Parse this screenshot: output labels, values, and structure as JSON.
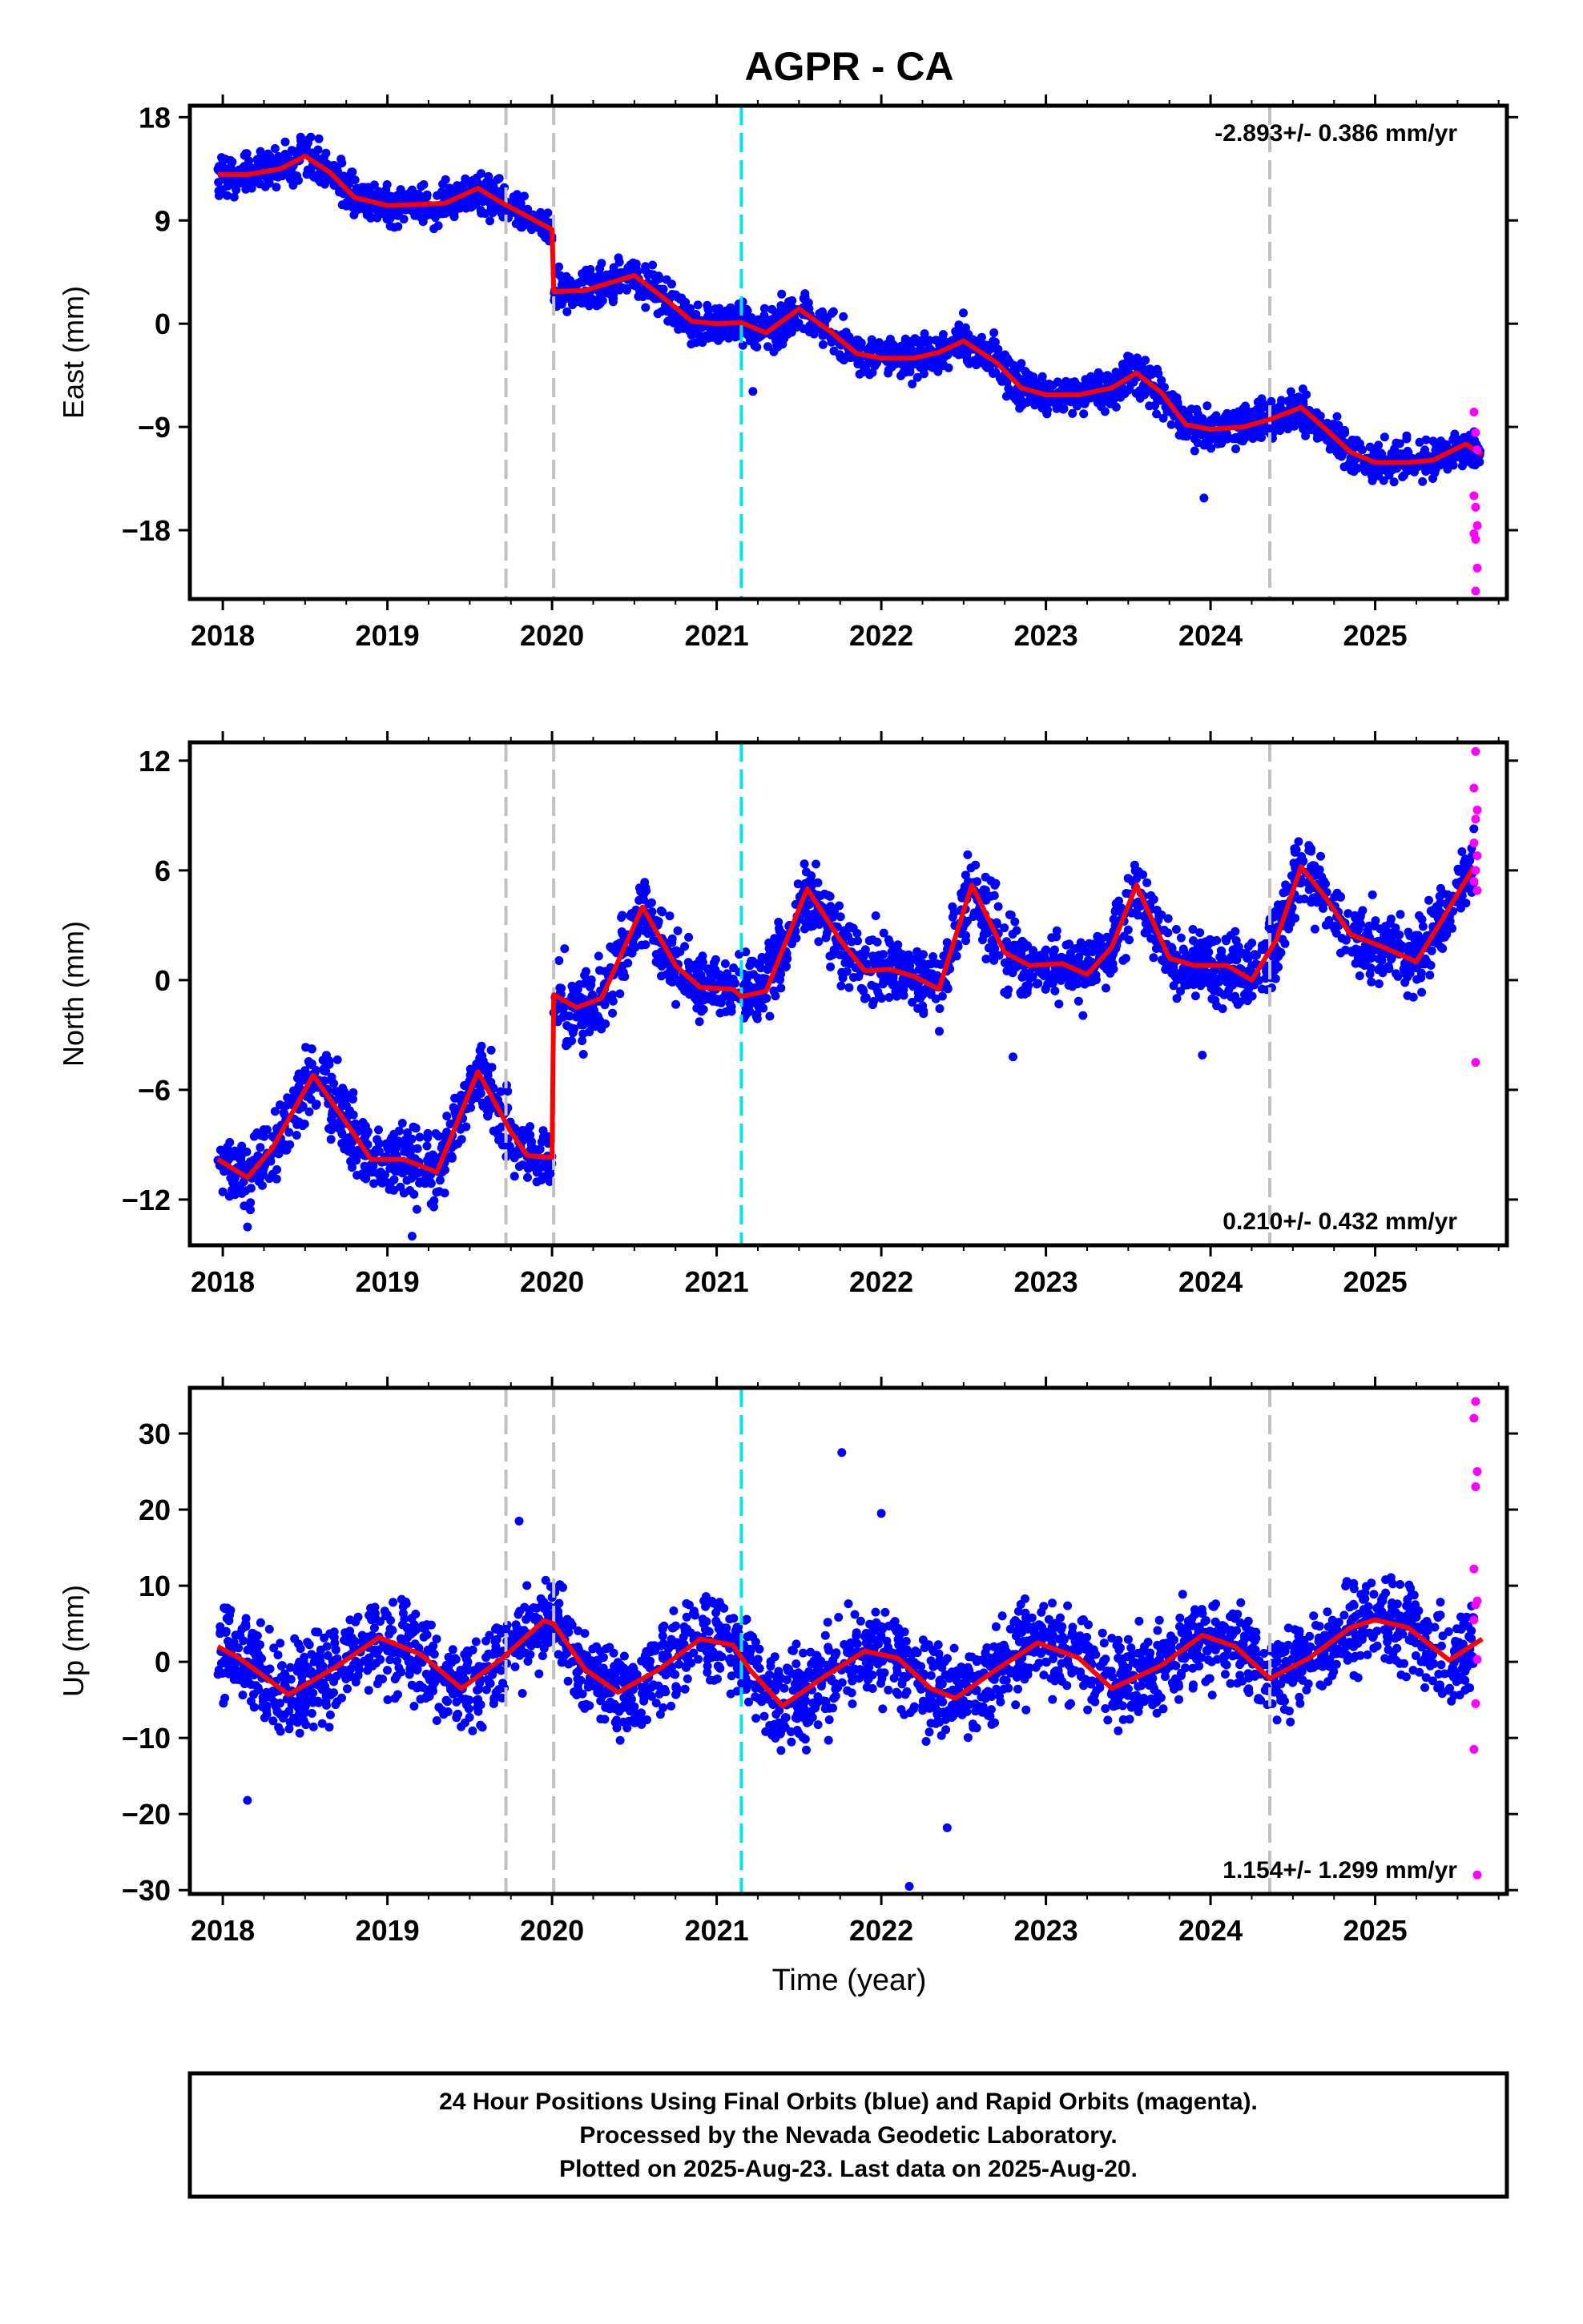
{
  "colors": {
    "final_orbits": "#0000ff",
    "rapid_orbits": "#ff00ff",
    "model_fit": "#ff0000",
    "event_line": "#c0c0c0",
    "antenna_change_line": "#00e5ee",
    "frame": "#000000"
  },
  "chart_data": [
    {
      "type": "scatter",
      "title": "AGPR - CA",
      "xlabel": "",
      "ylabel": "East (mm)",
      "xlim": [
        2017.8,
        2025.8
      ],
      "ylim": [
        -24,
        19
      ],
      "xticks": [
        2018,
        2019,
        2020,
        2021,
        2022,
        2023,
        2024,
        2025
      ],
      "yticks": [
        18,
        9,
        0,
        -9,
        -18
      ],
      "ytick_labels": [
        "18",
        "9",
        "0",
        "−9",
        "−18"
      ],
      "rate_label": "-2.893+/- 0.386 mm/yr",
      "event_lines_gray": [
        2019.72,
        2020.01,
        2024.36
      ],
      "event_lines_cyan": [
        2021.15
      ],
      "model": {
        "x": [
          2017.97,
          2018.15,
          2018.35,
          2018.5,
          2018.65,
          2018.8,
          2019.0,
          2019.2,
          2019.35,
          2019.55,
          2019.7,
          2020.0,
          2020.01,
          2020.2,
          2020.5,
          2020.7,
          2020.85,
          2021.0,
          2021.15,
          2021.3,
          2021.5,
          2021.7,
          2021.85,
          2022.0,
          2022.2,
          2022.35,
          2022.5,
          2022.7,
          2022.85,
          2023.0,
          2023.2,
          2023.4,
          2023.55,
          2023.7,
          2023.85,
          2024.0,
          2024.2,
          2024.35,
          2024.55,
          2024.7,
          2024.85,
          2025.0,
          2025.2,
          2025.35,
          2025.55,
          2025.65
        ],
        "y": [
          13.0,
          13.0,
          13.5,
          14.6,
          13.2,
          11.0,
          10.3,
          10.4,
          10.5,
          11.8,
          10.5,
          8.2,
          2.8,
          2.9,
          4.2,
          2.0,
          0.2,
          0.0,
          0.1,
          -0.8,
          1.3,
          -0.8,
          -2.6,
          -3.0,
          -3.0,
          -2.5,
          -1.5,
          -3.4,
          -5.6,
          -6.2,
          -6.2,
          -5.6,
          -4.3,
          -6.0,
          -8.8,
          -9.2,
          -9.0,
          -8.4,
          -7.3,
          -9.2,
          -11.2,
          -12.1,
          -12.1,
          -11.9,
          -10.5,
          -11.4
        ]
      },
      "final_points_lanes": [
        {
          "x0": 2017.97,
          "x1": 2019.72,
          "yc": 12.0,
          "spread": 1.6
        },
        {
          "x0": 2019.72,
          "x1": 2020.0,
          "yc": 9.2,
          "spread": 1.2
        },
        {
          "x0": 2020.01,
          "x1": 2021.15,
          "yc": 2.0,
          "spread": 1.6
        },
        {
          "x0": 2021.15,
          "x1": 2022.0,
          "yc": -0.3,
          "spread": 1.5
        },
        {
          "x0": 2022.0,
          "x1": 2023.0,
          "yc": -3.2,
          "spread": 1.6
        },
        {
          "x0": 2023.0,
          "x1": 2024.0,
          "yc": -6.0,
          "spread": 1.6
        },
        {
          "x0": 2024.0,
          "x1": 2025.65,
          "yc": -10.3,
          "spread": 1.5
        }
      ],
      "final_outliers": [
        {
          "x": 2023.96,
          "y": -15.2
        },
        {
          "x": 2021.22,
          "y": -5.9
        }
      ],
      "rapid_points": [
        {
          "x": 2025.6,
          "y": -7.7
        },
        {
          "x": 2025.61,
          "y": -9.5
        },
        {
          "x": 2025.62,
          "y": -11.0
        },
        {
          "x": 2025.6,
          "y": -15.0
        },
        {
          "x": 2025.61,
          "y": -16.0
        },
        {
          "x": 2025.62,
          "y": -17.6
        },
        {
          "x": 2025.6,
          "y": -18.3
        },
        {
          "x": 2025.61,
          "y": -18.8
        },
        {
          "x": 2025.62,
          "y": -21.3
        },
        {
          "x": 2025.61,
          "y": -23.3
        }
      ]
    },
    {
      "type": "scatter",
      "title": "",
      "xlabel": "",
      "ylabel": "North (mm)",
      "xlim": [
        2017.8,
        2025.8
      ],
      "ylim": [
        -14.5,
        13
      ],
      "xticks": [
        2018,
        2019,
        2020,
        2021,
        2022,
        2023,
        2024,
        2025
      ],
      "yticks": [
        12,
        6,
        0,
        -6,
        -12
      ],
      "ytick_labels": [
        "12",
        "6",
        "0",
        "−6",
        "−12"
      ],
      "rate_label": "0.210+/- 0.432 mm/yr",
      "event_lines_gray": [
        2019.72,
        2020.01,
        2024.36
      ],
      "event_lines_cyan": [
        2021.15
      ],
      "model": {
        "x": [
          2017.97,
          2018.15,
          2018.3,
          2018.55,
          2018.75,
          2018.9,
          2019.1,
          2019.3,
          2019.55,
          2019.75,
          2019.85,
          2020.0,
          2020.01,
          2020.15,
          2020.3,
          2020.55,
          2020.75,
          2020.9,
          2021.1,
          2021.15,
          2021.3,
          2021.55,
          2021.75,
          2021.9,
          2022.05,
          2022.2,
          2022.35,
          2022.55,
          2022.75,
          2022.9,
          2023.1,
          2023.25,
          2023.4,
          2023.55,
          2023.75,
          2023.9,
          2024.1,
          2024.25,
          2024.4,
          2024.55,
          2024.7,
          2024.85,
          2025.05,
          2025.25,
          2025.4,
          2025.6
        ],
        "y": [
          -9.8,
          -10.8,
          -9.2,
          -5.2,
          -7.8,
          -9.8,
          -9.8,
          -10.5,
          -5.0,
          -8.3,
          -9.6,
          -9.7,
          -0.8,
          -1.5,
          -1.0,
          4.0,
          0.8,
          -0.4,
          -0.5,
          -0.9,
          -0.6,
          5.0,
          2.2,
          0.5,
          0.6,
          0.2,
          -0.5,
          5.2,
          1.5,
          0.8,
          0.9,
          0.3,
          1.8,
          5.2,
          1.2,
          0.8,
          0.8,
          0.0,
          2.2,
          6.2,
          4.5,
          2.5,
          1.8,
          1.0,
          3.2,
          6.2
        ]
      },
      "final_points_lanes": [
        {
          "x0": 2017.97,
          "x1": 2020.0,
          "yc": -8.8,
          "spread": 1.7
        },
        {
          "x0": 2020.01,
          "x1": 2021.15,
          "yc": 1.0,
          "spread": 1.8
        },
        {
          "x0": 2021.15,
          "x1": 2022.25,
          "yc": 1.2,
          "spread": 1.8
        },
        {
          "x0": 2022.25,
          "x1": 2023.35,
          "yc": 1.6,
          "spread": 1.8
        },
        {
          "x0": 2023.35,
          "x1": 2024.36,
          "yc": 2.0,
          "spread": 1.8
        },
        {
          "x0": 2024.36,
          "x1": 2025.6,
          "yc": 3.2,
          "spread": 1.8
        }
      ],
      "final_outliers": [
        {
          "x": 2019.15,
          "y": -14.0
        },
        {
          "x": 2022.8,
          "y": -4.2
        },
        {
          "x": 2023.95,
          "y": -4.1
        },
        {
          "x": 2018.15,
          "y": -13.5
        }
      ],
      "rapid_points": [
        {
          "x": 2025.61,
          "y": 12.5
        },
        {
          "x": 2025.6,
          "y": 10.5
        },
        {
          "x": 2025.62,
          "y": 9.3
        },
        {
          "x": 2025.61,
          "y": 8.8
        },
        {
          "x": 2025.6,
          "y": 7.5
        },
        {
          "x": 2025.62,
          "y": 6.8
        },
        {
          "x": 2025.61,
          "y": 6.0
        },
        {
          "x": 2025.6,
          "y": 5.4
        },
        {
          "x": 2025.62,
          "y": 4.9
        },
        {
          "x": 2025.61,
          "y": -4.5
        }
      ]
    },
    {
      "type": "scatter",
      "title": "",
      "xlabel": "Time (year)",
      "ylabel": "Up (mm)",
      "xlim": [
        2017.8,
        2025.8
      ],
      "ylim": [
        -30.5,
        36
      ],
      "xticks": [
        2018,
        2019,
        2020,
        2021,
        2022,
        2023,
        2024,
        2025
      ],
      "yticks": [
        30,
        20,
        10,
        0,
        -10,
        -20,
        -30
      ],
      "ytick_labels": [
        "30",
        "20",
        "10",
        "0",
        "−10",
        "−20",
        "−30"
      ],
      "rate_label": "1.154+/- 1.299 mm/yr",
      "event_lines_gray": [
        2019.72,
        2020.01,
        2024.36
      ],
      "event_lines_cyan": [
        2021.15
      ],
      "model": {
        "x": [
          2017.97,
          2018.1,
          2018.4,
          2018.7,
          2018.95,
          2019.2,
          2019.45,
          2019.7,
          2019.95,
          2020.01,
          2020.2,
          2020.4,
          2020.65,
          2020.9,
          2021.1,
          2021.2,
          2021.4,
          2021.65,
          2021.9,
          2022.1,
          2022.3,
          2022.45,
          2022.7,
          2022.95,
          2023.2,
          2023.4,
          2023.7,
          2023.95,
          2024.15,
          2024.36,
          2024.6,
          2024.85,
          2025.0,
          2025.2,
          2025.45,
          2025.65
        ],
        "y": [
          2.0,
          0.5,
          -4.3,
          -0.5,
          3.2,
          1.0,
          -3.5,
          0.5,
          5.4,
          5.0,
          -1.0,
          -4.0,
          -1.0,
          3.0,
          2.2,
          -1.0,
          -5.8,
          -2.0,
          1.4,
          0.5,
          -3.5,
          -4.8,
          -1.0,
          2.5,
          0.5,
          -3.5,
          -0.5,
          3.5,
          2.0,
          -2.2,
          0.5,
          4.5,
          5.5,
          4.5,
          0.2,
          3.0
        ]
      },
      "final_points_lanes": [
        {
          "x0": 2017.97,
          "x1": 2019.72,
          "yc": -0.5,
          "spread": 5.5
        },
        {
          "x0": 2019.72,
          "x1": 2020.0,
          "yc": 4.5,
          "spread": 4.5
        },
        {
          "x0": 2020.01,
          "x1": 2021.15,
          "yc": -0.5,
          "spread": 5.5
        },
        {
          "x0": 2021.15,
          "x1": 2022.3,
          "yc": -1.0,
          "spread": 6.0
        },
        {
          "x0": 2022.3,
          "x1": 2023.45,
          "yc": -1.5,
          "spread": 5.5
        },
        {
          "x0": 2023.45,
          "x1": 2024.36,
          "yc": 0.5,
          "spread": 5.0
        },
        {
          "x0": 2024.36,
          "x1": 2025.6,
          "yc": 2.5,
          "spread": 5.5
        }
      ],
      "final_outliers": [
        {
          "x": 2021.76,
          "y": 27.5
        },
        {
          "x": 2022.17,
          "y": -29.5
        },
        {
          "x": 2022.4,
          "y": -21.8
        },
        {
          "x": 2018.15,
          "y": -18.2
        },
        {
          "x": 2019.8,
          "y": 18.5
        },
        {
          "x": 2022.0,
          "y": 19.5
        }
      ],
      "rapid_points": [
        {
          "x": 2025.61,
          "y": 34.2
        },
        {
          "x": 2025.6,
          "y": 32.0
        },
        {
          "x": 2025.62,
          "y": 25.0
        },
        {
          "x": 2025.61,
          "y": 23.0
        },
        {
          "x": 2025.6,
          "y": 12.2
        },
        {
          "x": 2025.62,
          "y": 8.0
        },
        {
          "x": 2025.61,
          "y": 7.5
        },
        {
          "x": 2025.6,
          "y": 5.5
        },
        {
          "x": 2025.62,
          "y": 0.3
        },
        {
          "x": 2025.61,
          "y": -5.5
        },
        {
          "x": 2025.6,
          "y": -11.5
        },
        {
          "x": 2025.62,
          "y": -28.0
        }
      ]
    }
  ],
  "footer": {
    "line1": "24 Hour Positions Using Final Orbits (blue) and Rapid Orbits (magenta).",
    "line2": "Processed by the Nevada Geodetic Laboratory.",
    "line3": "Plotted on 2025-Aug-23. Last data on 2025-Aug-20."
  }
}
